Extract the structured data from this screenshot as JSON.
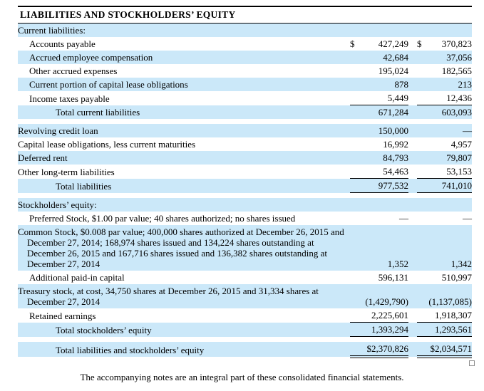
{
  "title": "LIABILITIES AND STOCKHOLDERS’ EQUITY",
  "footer": "The accompanying notes are an integral part of these consolidated financial statements.",
  "colors": {
    "row_highlight_blue": "#CBE8F9",
    "rule_black": "#000000",
    "text": "#000000"
  },
  "currency_symbol": "$",
  "table": {
    "rows": [
      {
        "type": "section",
        "label": "Current liabilities:",
        "bg": "blue"
      },
      {
        "type": "item",
        "label": "Accounts payable",
        "indent": 1,
        "bg": "white",
        "dollar_2015": "$",
        "dollar_2014": "$",
        "v_2015": "427,249",
        "v_2014": "370,823",
        "rule": "none"
      },
      {
        "type": "item",
        "label": "Accrued employee compensation",
        "indent": 1,
        "bg": "blue",
        "v_2015": "42,684",
        "v_2014": "37,056",
        "rule": "none"
      },
      {
        "type": "item",
        "label": "Other accrued expenses",
        "indent": 1,
        "bg": "white",
        "v_2015": "195,024",
        "v_2014": "182,565",
        "rule": "none"
      },
      {
        "type": "item",
        "label": "Current portion of capital lease obligations",
        "indent": 1,
        "bg": "blue",
        "v_2015": "878",
        "v_2014": "213",
        "rule": "none"
      },
      {
        "type": "item",
        "label": "Income taxes payable",
        "indent": 1,
        "bg": "white",
        "v_2015": "5,449",
        "v_2014": "12,436",
        "rule": "single"
      },
      {
        "type": "item",
        "label": "Total current liabilities",
        "indent": 2,
        "bg": "blue",
        "v_2015": "671,284",
        "v_2014": "603,093",
        "rule": "none"
      },
      {
        "type": "gap"
      },
      {
        "type": "item",
        "label": "Revolving credit loan",
        "indent": 0,
        "bg": "blue",
        "v_2015": "150,000",
        "v_2014": "—",
        "rule": "none"
      },
      {
        "type": "item",
        "label": "Capital lease obligations, less current maturities",
        "indent": 0,
        "bg": "white",
        "v_2015": "16,992",
        "v_2014": "4,957",
        "rule": "none"
      },
      {
        "type": "item",
        "label": "Deferred rent",
        "indent": 0,
        "bg": "blue",
        "v_2015": "84,793",
        "v_2014": "79,807",
        "rule": "none"
      },
      {
        "type": "item",
        "label": "Other long-term liabilities",
        "indent": 0,
        "bg": "white",
        "v_2015": "54,463",
        "v_2014": "53,153",
        "rule": "single"
      },
      {
        "type": "item",
        "label": "Total liabilities",
        "indent": 2,
        "bg": "blue",
        "v_2015": "977,532",
        "v_2014": "741,010",
        "rule": "single"
      },
      {
        "type": "gap"
      },
      {
        "type": "section",
        "label": "Stockholders’ equity:",
        "bg": "blue"
      },
      {
        "type": "item",
        "label": "Preferred Stock, $1.00 par value; 40 shares authorized; no shares issued",
        "indent": 1,
        "bg": "white",
        "v_2015": "—",
        "v_2014": "—",
        "rule": "none"
      },
      {
        "type": "item",
        "label_lines": [
          "Common Stock, $0.008 par value; 400,000 shares authorized at December 26, 2015 and",
          "December 27, 2014; 168,974 shares issued and 134,224 shares outstanding at",
          "December 26, 2015 and 167,716 shares issued and 136,382 shares outstanding at",
          "December 27, 2014"
        ],
        "indent": 0,
        "bg": "blue",
        "v_2015": "1,352",
        "v_2014": "1,342",
        "rule": "none"
      },
      {
        "type": "item",
        "label": "Additional paid-in capital",
        "indent": 1,
        "bg": "white",
        "v_2015": "596,131",
        "v_2014": "510,997",
        "rule": "none"
      },
      {
        "type": "item",
        "label_lines": [
          "Treasury stock, at cost, 34,750 shares at December 26, 2015 and 31,334 shares at",
          "December 27, 2014"
        ],
        "indent": 0,
        "bg": "blue",
        "v_2015": "(1,429,790)",
        "v_2014": "(1,137,085)",
        "rule": "none"
      },
      {
        "type": "item",
        "label": "Retained earnings",
        "indent": 1,
        "bg": "white",
        "v_2015": "2,225,601",
        "v_2014": "1,918,307",
        "rule": "single"
      },
      {
        "type": "item",
        "label": "Total stockholders’ equity",
        "indent": 2,
        "bg": "blue",
        "v_2015": "1,393,294",
        "v_2014": "1,293,561",
        "rule": "single"
      },
      {
        "type": "gap"
      },
      {
        "type": "item",
        "label": "Total liabilities  and stockholders’ equity",
        "indent": 2,
        "bg": "blue",
        "v_2015": "$2,370,826",
        "v_2014": "$2,034,571",
        "rule": "double"
      }
    ]
  }
}
